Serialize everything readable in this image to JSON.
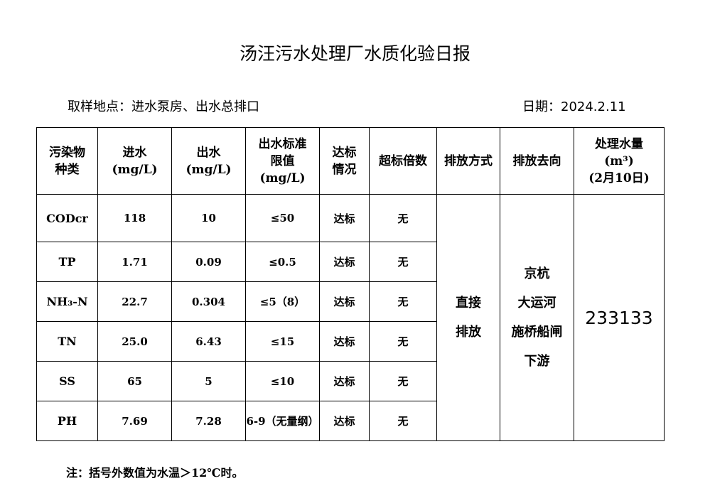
{
  "title": "汤汪污水处理厂水质化验日报",
  "sampling_location": "取样地点：进水泵房、出水总排口",
  "date": "日期：2024.2.11",
  "headers": [
    "污染物种类",
    "进水(mg/L)",
    "出水(mg/L)",
    "出水标准限值(mg/L)",
    "达标情况",
    "超标倍数",
    "排放方式",
    "排放去向",
    "处理水量(m³)(2月10日)"
  ],
  "header_lines": {
    "pollutant": [
      "污染物",
      "种类"
    ],
    "influent": [
      "进水",
      "(mg/L)"
    ],
    "effluent": [
      "出水",
      "(mg/L)"
    ],
    "limit": [
      "出水标准",
      "限值",
      "(mg/L)"
    ],
    "compliance": [
      "达标",
      "情况"
    ],
    "exceed": "超标倍数",
    "method": "排放方式",
    "destination": "排放去向",
    "volume": [
      "处理水量",
      "(m³)",
      "(2月10日)"
    ]
  },
  "rows": [
    {
      "pollutant": "CODcr",
      "influent": "118",
      "effluent": "10",
      "limit": "≤50",
      "compliance": "达标",
      "exceed": "无"
    },
    {
      "pollutant": "TP",
      "influent": "1.71",
      "effluent": "0.09",
      "limit": "≤0.5",
      "compliance": "达标",
      "exceed": "无"
    },
    {
      "pollutant": "NH₃-N",
      "influent": "22.7",
      "effluent": "0.304",
      "limit": "≤5（8）",
      "compliance": "达标",
      "exceed": "无"
    },
    {
      "pollutant": "TN",
      "influent": "25.0",
      "effluent": "6.43",
      "limit": "≤15",
      "compliance": "达标",
      "exceed": "无"
    },
    {
      "pollutant": "SS",
      "influent": "65",
      "effluent": "5",
      "limit": "≤10",
      "compliance": "达标",
      "exceed": "无"
    },
    {
      "pollutant": "PH",
      "influent": "7.69",
      "effluent": "7.28",
      "limit": "6-9（无量纲）",
      "compliance": "达标",
      "exceed": "无"
    }
  ],
  "discharge_method": [
    "直接",
    "排放"
  ],
  "discharge_destination": [
    "京杭",
    "大运河",
    "施桥船闸",
    "下游"
  ],
  "treated_volume": "233133",
  "note": "注：括号外数值为水温＞12℃时。"
}
